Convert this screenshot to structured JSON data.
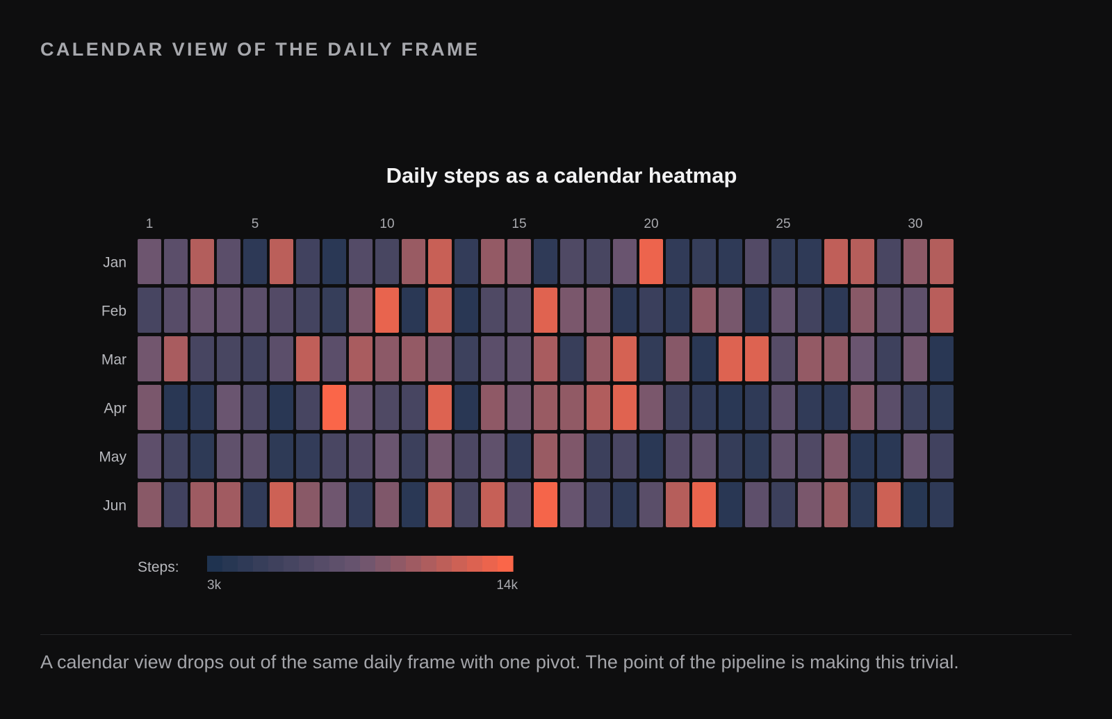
{
  "page": {
    "section_title": "CALENDAR VIEW OF THE DAILY FRAME",
    "caption": "A calendar view drops out of the same daily frame with one pivot. The point of the pipeline is making this trivial."
  },
  "colors": {
    "background": "#0e0e0f",
    "scale_low": "#1f3350",
    "scale_mid": "#6a5570",
    "scale_high": "#fa6649"
  },
  "chart_data": {
    "type": "heatmap",
    "title": "Daily steps as a calendar heatmap",
    "rows": [
      "Jan",
      "Feb",
      "Mar",
      "Apr",
      "May",
      "Jun"
    ],
    "columns": [
      1,
      2,
      3,
      4,
      5,
      6,
      7,
      8,
      9,
      10,
      11,
      12,
      13,
      14,
      15,
      16,
      17,
      18,
      19,
      20,
      21,
      22,
      23,
      24,
      25,
      26,
      27,
      28,
      29,
      30,
      31
    ],
    "column_tick_labels": [
      "1",
      "5",
      "10",
      "15",
      "20",
      "25",
      "30"
    ],
    "column_tick_values": [
      1,
      5,
      10,
      15,
      20,
      25,
      30
    ],
    "values": [
      [
        8600,
        7400,
        11300,
        7400,
        4000,
        11600,
        5500,
        3800,
        6900,
        6000,
        10300,
        12100,
        4500,
        10100,
        9500,
        4200,
        6500,
        6000,
        8400,
        13500,
        4300,
        4700,
        4200,
        6800,
        4400,
        4200,
        11800,
        11400,
        6100,
        9800,
        11300
      ],
      [
        5900,
        7100,
        8200,
        7900,
        7400,
        6800,
        5700,
        4700,
        9200,
        13300,
        3800,
        12100,
        3700,
        6500,
        7300,
        13000,
        9100,
        9200,
        4000,
        5000,
        4200,
        9900,
        9000,
        4000,
        8000,
        5600,
        4000,
        9700,
        7300,
        7700,
        11500
      ],
      [
        8800,
        10900,
        5900,
        6000,
        5600,
        7400,
        11800,
        7400,
        10900,
        9800,
        10100,
        9300,
        5200,
        7400,
        7800,
        10900,
        4800,
        10100,
        12600,
        4400,
        9600,
        3800,
        12900,
        12900,
        7000,
        10100,
        10000,
        8500,
        5300,
        8800,
        3700
      ],
      [
        9100,
        3700,
        4000,
        8500,
        6400,
        3700,
        5900,
        14000,
        8200,
        6500,
        5900,
        12900,
        3700,
        9900,
        8800,
        10300,
        10000,
        11200,
        13000,
        9100,
        5300,
        4300,
        3800,
        4200,
        7400,
        4300,
        4000,
        9500,
        7400,
        5200,
        4100
      ],
      [
        7600,
        5600,
        4100,
        7800,
        7500,
        4100,
        4500,
        6100,
        6800,
        8500,
        5100,
        8800,
        6300,
        7800,
        4500,
        10300,
        9300,
        5100,
        6100,
        3800,
        6800,
        7500,
        4600,
        4100,
        7700,
        6600,
        9400,
        3700,
        3800,
        8300,
        5500
      ],
      [
        9700,
        5500,
        10500,
        10600,
        4300,
        12300,
        9700,
        8700,
        4500,
        9300,
        3800,
        11600,
        6000,
        12000,
        7400,
        13800,
        8300,
        5500,
        4200,
        7300,
        11400,
        13400,
        3700,
        7600,
        5100,
        9100,
        10300,
        3900,
        12300,
        3600,
        4200
      ]
    ],
    "legend": {
      "label": "Steps:",
      "min": 3000,
      "max": 14000,
      "min_label": "3k",
      "max_label": "14k",
      "steps": 20
    }
  }
}
